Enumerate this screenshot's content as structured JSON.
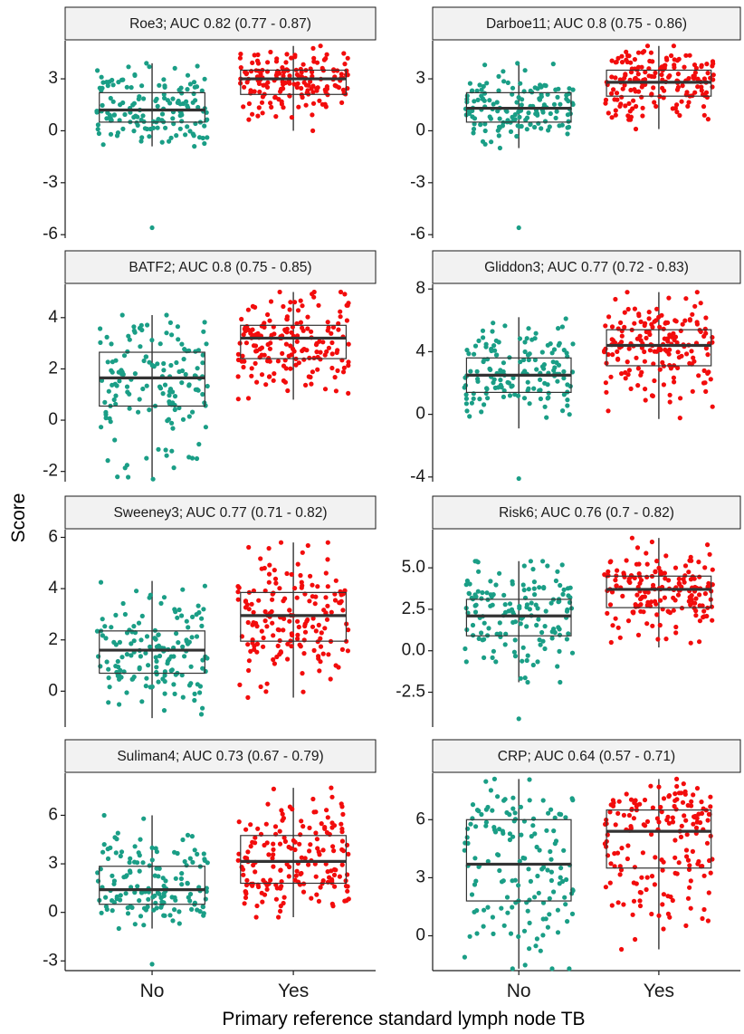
{
  "colors": {
    "No": "#1a9e86",
    "Yes": "#f20c0c"
  },
  "axes": {
    "ylabel": "Score",
    "xlabel": "Primary reference standard lymph node TB",
    "categories": [
      "No",
      "Yes"
    ]
  },
  "chart_data": [
    {
      "type": "box-jitter",
      "title": "Roe3; AUC 0.82 (0.77 - 0.87)",
      "ylim": [
        -6.2,
        5.2
      ],
      "yticks": [
        -6,
        -3,
        0,
        3
      ],
      "ytick_labels": [
        "-6",
        "-3",
        "0",
        "3"
      ],
      "groups": [
        {
          "name": "No",
          "q1": 0.5,
          "median": 1.2,
          "q3": 2.2,
          "whisker_low": -0.9,
          "whisker_high": 3.9,
          "n": 150,
          "outliers": [
            -5.6
          ]
        },
        {
          "name": "Yes",
          "q1": 2.1,
          "median": 3.0,
          "q3": 3.5,
          "whisker_low": 0.0,
          "whisker_high": 4.9,
          "n": 175,
          "outliers": []
        }
      ]
    },
    {
      "type": "box-jitter",
      "title": "Darboe11; AUC 0.8 (0.75 - 0.86)",
      "ylim": [
        -6.2,
        5.2
      ],
      "yticks": [
        -6,
        -3,
        0,
        3
      ],
      "ytick_labels": [
        "-6",
        "-3",
        "0",
        "3"
      ],
      "groups": [
        {
          "name": "No",
          "q1": 0.5,
          "median": 1.3,
          "q3": 2.2,
          "whisker_low": -1.0,
          "whisker_high": 3.9,
          "n": 150,
          "outliers": [
            -5.6
          ]
        },
        {
          "name": "Yes",
          "q1": 2.0,
          "median": 2.8,
          "q3": 3.5,
          "whisker_low": 0.1,
          "whisker_high": 4.9,
          "n": 175,
          "outliers": []
        }
      ]
    },
    {
      "type": "box-jitter",
      "title": "BATF2; AUC 0.8 (0.75 - 0.85)",
      "ylim": [
        -2.4,
        5.3
      ],
      "yticks": [
        -2,
        0,
        2,
        4
      ],
      "ytick_labels": [
        "-2",
        "0",
        "2",
        "4"
      ],
      "groups": [
        {
          "name": "No",
          "q1": 0.55,
          "median": 1.65,
          "q3": 2.65,
          "whisker_low": -2.3,
          "whisker_high": 4.1,
          "n": 150,
          "outliers": []
        },
        {
          "name": "Yes",
          "q1": 2.4,
          "median": 3.2,
          "q3": 3.7,
          "whisker_low": 0.8,
          "whisker_high": 5.0,
          "n": 175,
          "outliers": []
        }
      ]
    },
    {
      "type": "box-jitter",
      "title": "Gliddon3; AUC 0.77 (0.72 - 0.83)",
      "ylim": [
        -4.3,
        8.3
      ],
      "yticks": [
        -4,
        0,
        4,
        8
      ],
      "ytick_labels": [
        "-4",
        "0",
        "4",
        "8"
      ],
      "groups": [
        {
          "name": "No",
          "q1": 1.4,
          "median": 2.5,
          "q3": 3.6,
          "whisker_low": -0.9,
          "whisker_high": 6.2,
          "n": 150,
          "outliers": [
            -4.1
          ]
        },
        {
          "name": "Yes",
          "q1": 3.1,
          "median": 4.4,
          "q3": 5.4,
          "whisker_low": -0.3,
          "whisker_high": 7.8,
          "n": 175,
          "outliers": []
        }
      ]
    },
    {
      "type": "box-jitter",
      "title": "Sweeney3; AUC 0.77 (0.71 - 0.82)",
      "ylim": [
        -1.4,
        6.3
      ],
      "yticks": [
        0,
        2,
        4,
        6
      ],
      "ytick_labels": [
        "0",
        "2",
        "4",
        "6"
      ],
      "groups": [
        {
          "name": "No",
          "q1": 0.7,
          "median": 1.6,
          "q3": 2.35,
          "whisker_low": -1.05,
          "whisker_high": 4.3,
          "n": 150,
          "outliers": []
        },
        {
          "name": "Yes",
          "q1": 1.95,
          "median": 2.95,
          "q3": 3.85,
          "whisker_low": -0.25,
          "whisker_high": 5.8,
          "n": 175,
          "outliers": []
        }
      ]
    },
    {
      "type": "box-jitter",
      "title": "Risk6; AUC 0.76 (0.7 - 0.82)",
      "ylim": [
        -4.6,
        7.3
      ],
      "yticks": [
        -2.5,
        0,
        2.5,
        5
      ],
      "ytick_labels": [
        "-2.5",
        "0.0",
        "2.5",
        "5.0"
      ],
      "groups": [
        {
          "name": "No",
          "q1": 0.9,
          "median": 2.1,
          "q3": 3.1,
          "whisker_low": -1.9,
          "whisker_high": 5.4,
          "n": 150,
          "outliers": [
            -4.1
          ]
        },
        {
          "name": "Yes",
          "q1": 2.6,
          "median": 3.7,
          "q3": 4.5,
          "whisker_low": 0.2,
          "whisker_high": 6.8,
          "n": 175,
          "outliers": []
        }
      ]
    },
    {
      "type": "box-jitter",
      "title": "Suliman4; AUC 0.73 (0.67 - 0.79)",
      "ylim": [
        -3.6,
        8.6
      ],
      "yticks": [
        -3,
        0,
        3,
        6
      ],
      "ytick_labels": [
        "-3",
        "0",
        "3",
        "6"
      ],
      "groups": [
        {
          "name": "No",
          "q1": 0.5,
          "median": 1.4,
          "q3": 2.85,
          "whisker_low": -1.0,
          "whisker_high": 6.0,
          "n": 150,
          "outliers": [
            -3.2
          ]
        },
        {
          "name": "Yes",
          "q1": 1.8,
          "median": 3.15,
          "q3": 4.75,
          "whisker_low": -0.3,
          "whisker_high": 7.7,
          "n": 175,
          "outliers": []
        }
      ]
    },
    {
      "type": "box-jitter",
      "title": "CRP; AUC 0.64 (0.57 - 0.71)",
      "ylim": [
        -1.8,
        8.4
      ],
      "yticks": [
        0,
        3,
        6
      ],
      "ytick_labels": [
        "0",
        "3",
        "6"
      ],
      "groups": [
        {
          "name": "No",
          "q1": 1.8,
          "median": 3.7,
          "q3": 6.0,
          "whisker_low": -1.7,
          "whisker_high": 8.1,
          "n": 150,
          "outliers": []
        },
        {
          "name": "Yes",
          "q1": 3.5,
          "median": 5.4,
          "q3": 6.5,
          "whisker_low": -0.7,
          "whisker_high": 8.1,
          "n": 175,
          "outliers": []
        }
      ]
    }
  ]
}
